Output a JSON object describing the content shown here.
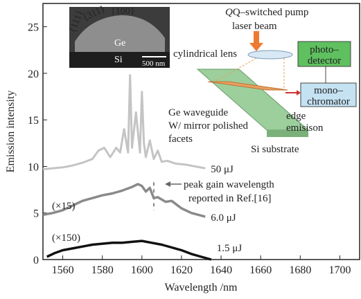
{
  "chart_data": {
    "type": "line",
    "x_label": "Wavelength /nm",
    "y_label": "Emission intensity",
    "xlim": [
      1550,
      1710
    ],
    "xticks": [
      1560,
      1580,
      1600,
      1620,
      1640,
      1660,
      1680,
      1700
    ],
    "ylim": [
      0,
      27.5
    ],
    "yticks": [
      0,
      5,
      10,
      15,
      20,
      25
    ],
    "grid": false,
    "series": [
      {
        "name": "50 μJ",
        "color": "#c4c4c4",
        "x": [
          1550,
          1555,
          1560,
          1565,
          1570,
          1575,
          1578,
          1581,
          1584,
          1587,
          1589,
          1591,
          1593,
          1594,
          1595,
          1597,
          1599,
          1600,
          1601,
          1602,
          1604,
          1606,
          1608,
          1610,
          1613,
          1617,
          1622,
          1627,
          1632
        ],
        "values": [
          9.7,
          9.8,
          9.9,
          10.1,
          10.4,
          10.8,
          11.7,
          12.0,
          11.0,
          12.0,
          11.5,
          14.0,
          11.5,
          19.8,
          12.0,
          15.8,
          11.5,
          18.0,
          12.5,
          11.0,
          12.8,
          10.8,
          11.7,
          10.5,
          10.6,
          10.3,
          10.2,
          10.0,
          9.8
        ]
      },
      {
        "name": "6.0 μJ",
        "color": "#8a8a8a",
        "multiplier": "(×15)",
        "x": [
          1550,
          1555,
          1560,
          1565,
          1570,
          1575,
          1580,
          1585,
          1590,
          1595,
          1598,
          1600,
          1602,
          1604,
          1606,
          1608,
          1612,
          1615,
          1620,
          1625,
          1632
        ],
        "values": [
          4.8,
          5.0,
          5.3,
          5.8,
          6.3,
          6.6,
          6.9,
          7.1,
          7.4,
          7.8,
          8.1,
          7.9,
          7.3,
          7.7,
          6.6,
          6.7,
          6.2,
          6.3,
          5.5,
          5.0,
          4.6
        ]
      },
      {
        "name": "1.5 μJ",
        "color": "#111111",
        "multiplier": "(×150)",
        "x": [
          1552,
          1556,
          1560,
          1565,
          1570,
          1575,
          1580,
          1585,
          1590,
          1595,
          1600,
          1605,
          1610,
          1615,
          1620,
          1625,
          1630,
          1635
        ],
        "values": [
          0.3,
          0.7,
          1.0,
          1.2,
          1.4,
          1.6,
          1.7,
          1.8,
          1.8,
          1.9,
          2.0,
          1.8,
          1.6,
          1.3,
          1.0,
          0.6,
          0.3,
          0
        ]
      }
    ],
    "annotation": {
      "lines": [
        "peak gain wavelength",
        "reported in Ref.[16]"
      ],
      "x": 1606
    }
  },
  "sem_image": {
    "facets": [
      "{111}",
      "{311}",
      "{100}"
    ],
    "ge": "Ge",
    "si": "Si",
    "scale_bar": "500 nm"
  },
  "schematic": {
    "pump": [
      "Q–switched pump",
      "laser beam"
    ],
    "lens": "cylindrical lens",
    "detector": [
      "photo–",
      "detector"
    ],
    "monochromator": [
      "mono–",
      "chromator"
    ],
    "waveguide": [
      "Ge waveguide",
      "W/ mirror polished",
      "facets"
    ],
    "edge": [
      "edge",
      "emisison"
    ],
    "substrate": "Si substrate"
  }
}
